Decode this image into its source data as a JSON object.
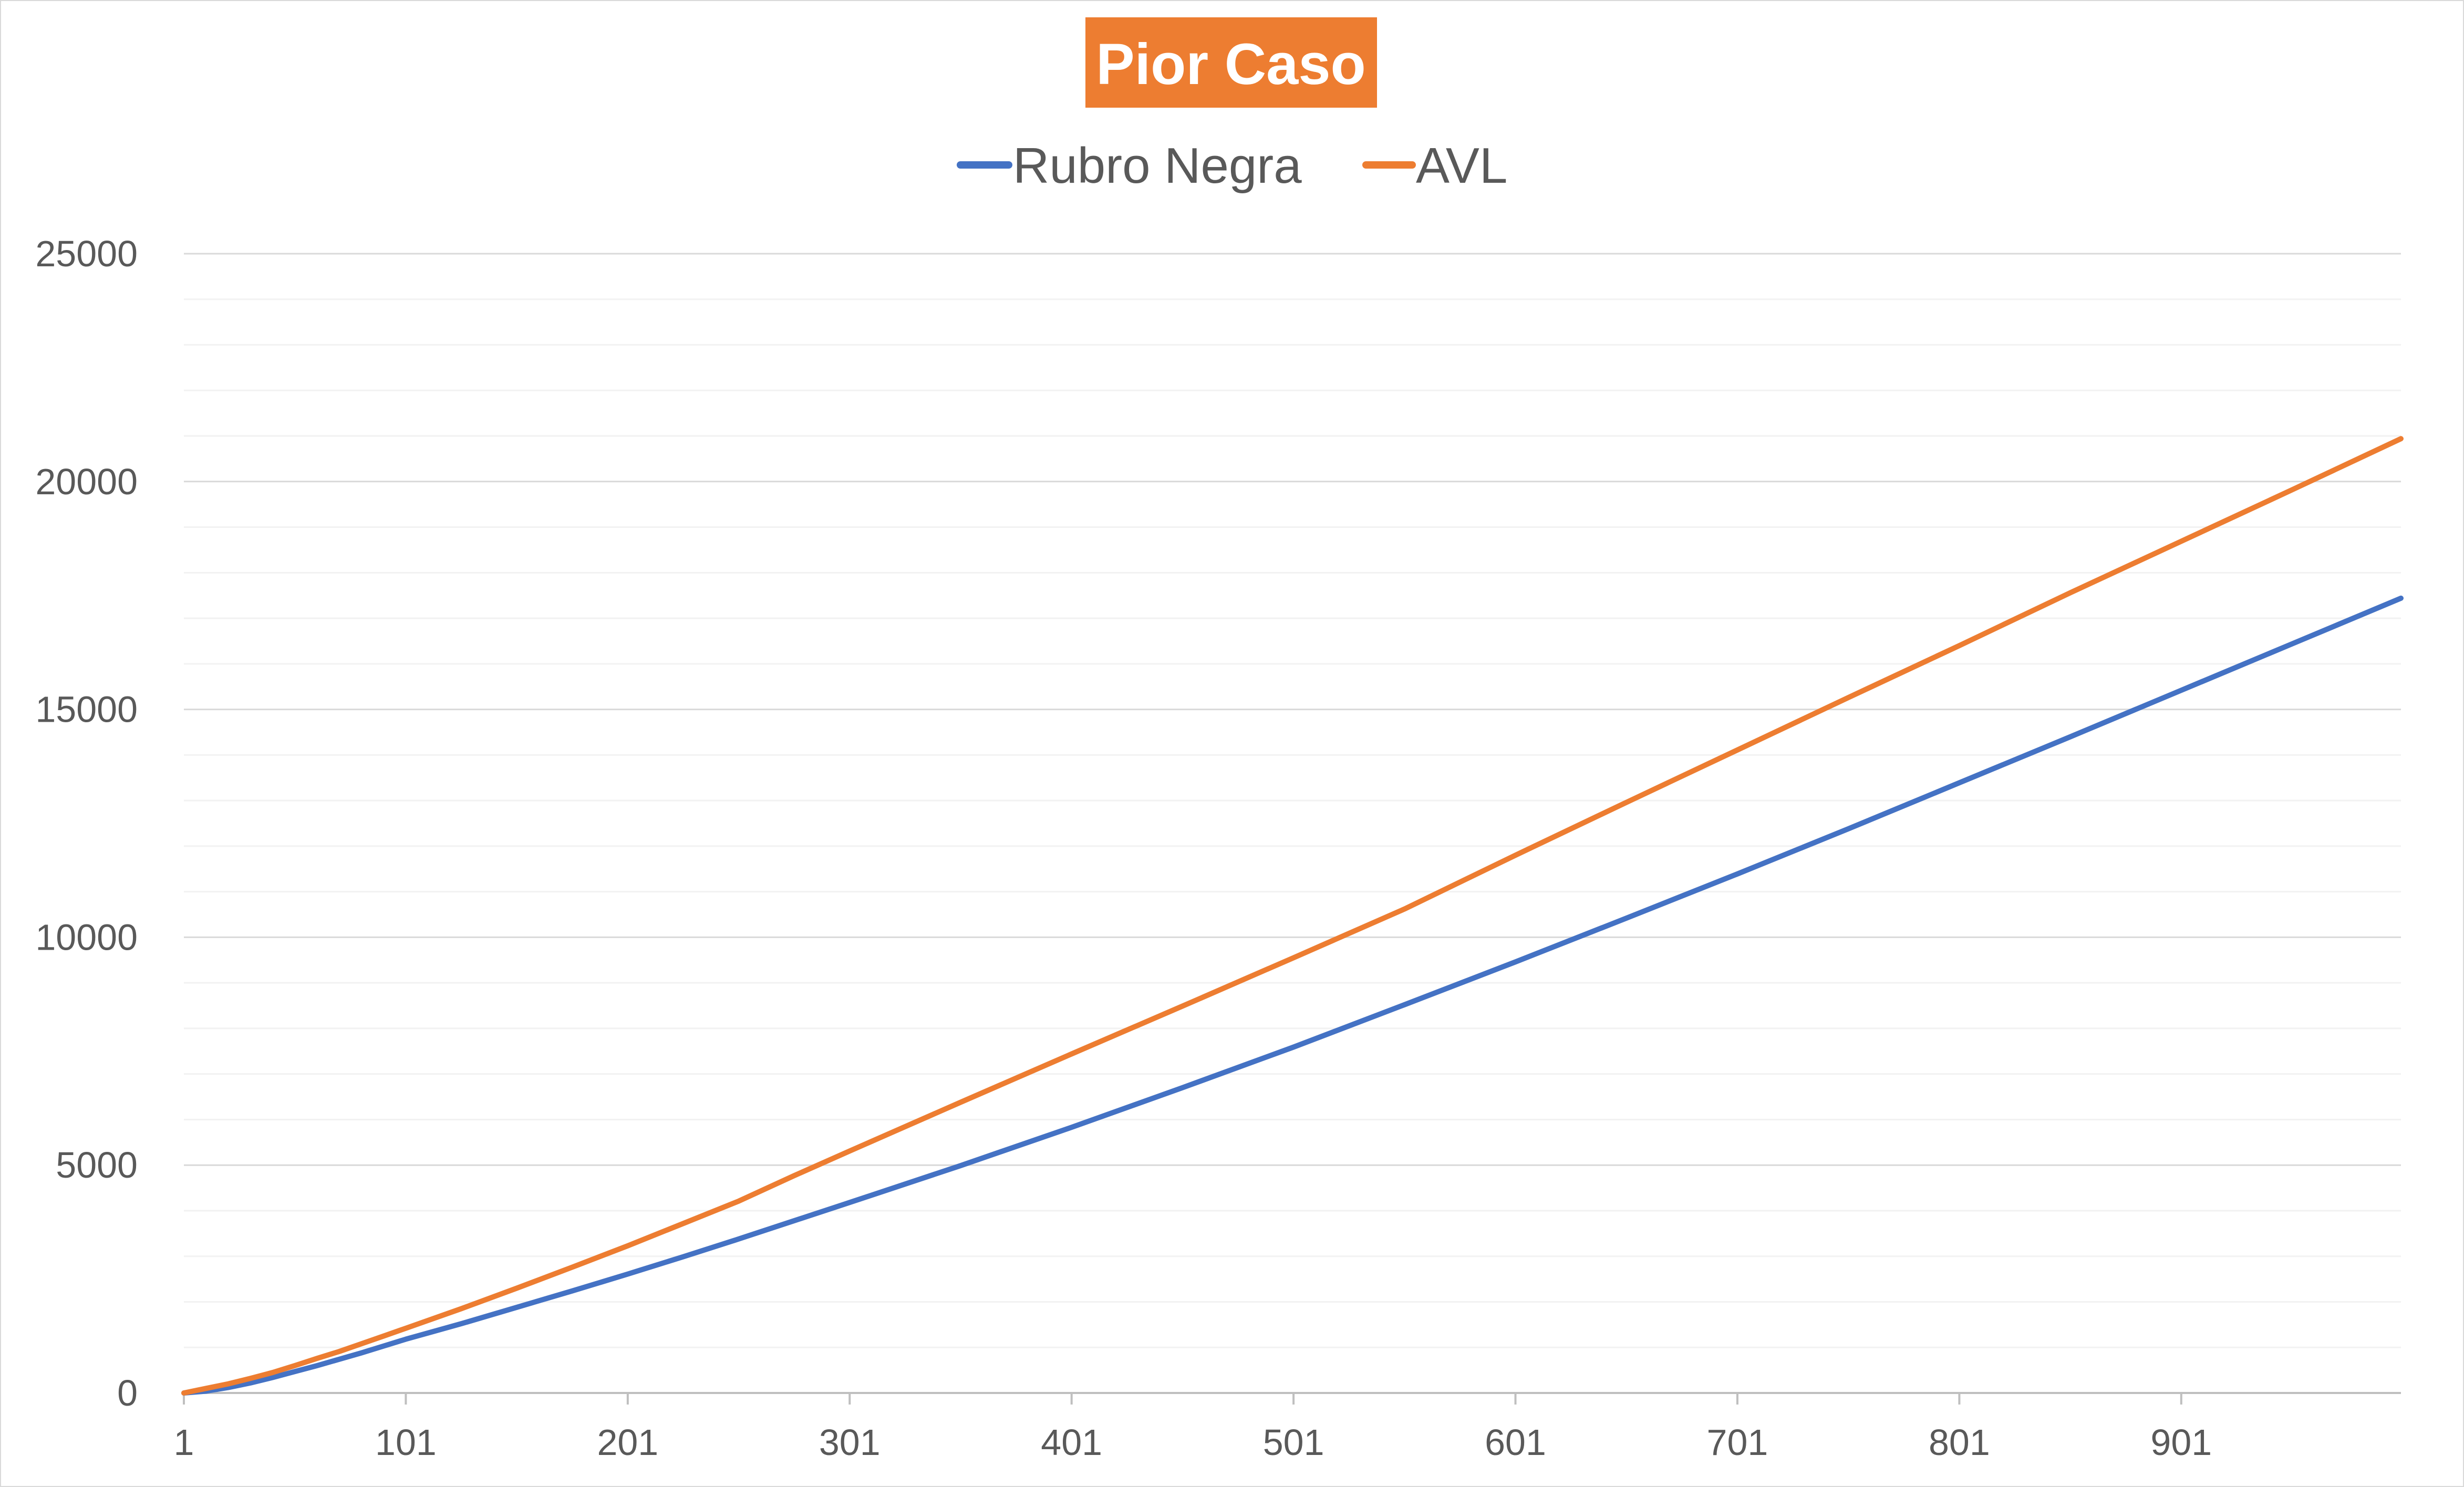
{
  "colors": {
    "rubro_negra": "#4472c4",
    "avl": "#ed7d31",
    "title_bg": "#ed7d31",
    "grid_major": "#d9d9d9",
    "grid_minor": "#f2f2f2",
    "axis": "#bfbfbf",
    "text": "#595959"
  },
  "chart_data": {
    "type": "line",
    "title": "Pior Caso",
    "title_style": "white bold text on orange box",
    "legend_position": "top",
    "grid": true,
    "minor_grid": true,
    "xlabel": "",
    "ylabel": "",
    "xlim": [
      1,
      1000
    ],
    "ylim": [
      0,
      25000
    ],
    "x_ticks": [
      "1",
      "101",
      "201",
      "301",
      "401",
      "501",
      "601",
      "701",
      "801",
      "901"
    ],
    "y_ticks": [
      "0",
      "5000",
      "10000",
      "15000",
      "20000",
      "25000"
    ],
    "x": [
      1,
      11,
      21,
      31,
      41,
      51,
      61,
      71,
      81,
      91,
      101,
      126,
      151,
      176,
      201,
      226,
      251,
      276,
      301,
      351,
      401,
      451,
      501,
      551,
      601,
      651,
      701,
      751,
      801,
      851,
      901,
      951,
      1000
    ],
    "series": [
      {
        "name": "Rubro Negra",
        "color": "#4472c4",
        "values": [
          0,
          40,
          120,
          220,
          340,
          470,
          600,
          740,
          880,
          1030,
          1180,
          1520,
          1880,
          2240,
          2610,
          2990,
          3380,
          3780,
          4180,
          4990,
          5830,
          6700,
          7590,
          8520,
          9460,
          10420,
          11390,
          12380,
          13390,
          14400,
          15420,
          16440,
          17440
        ]
      },
      {
        "name": "AVL",
        "color": "#ed7d31",
        "values": [
          0,
          100,
          200,
          320,
          450,
          600,
          760,
          910,
          1080,
          1250,
          1420,
          1850,
          2300,
          2760,
          3230,
          3720,
          4210,
          4770,
          5310,
          6380,
          7440,
          8490,
          9550,
          10620,
          11800,
          12960,
          14110,
          15260,
          16400,
          17560,
          18690,
          19820,
          20940
        ]
      }
    ]
  }
}
